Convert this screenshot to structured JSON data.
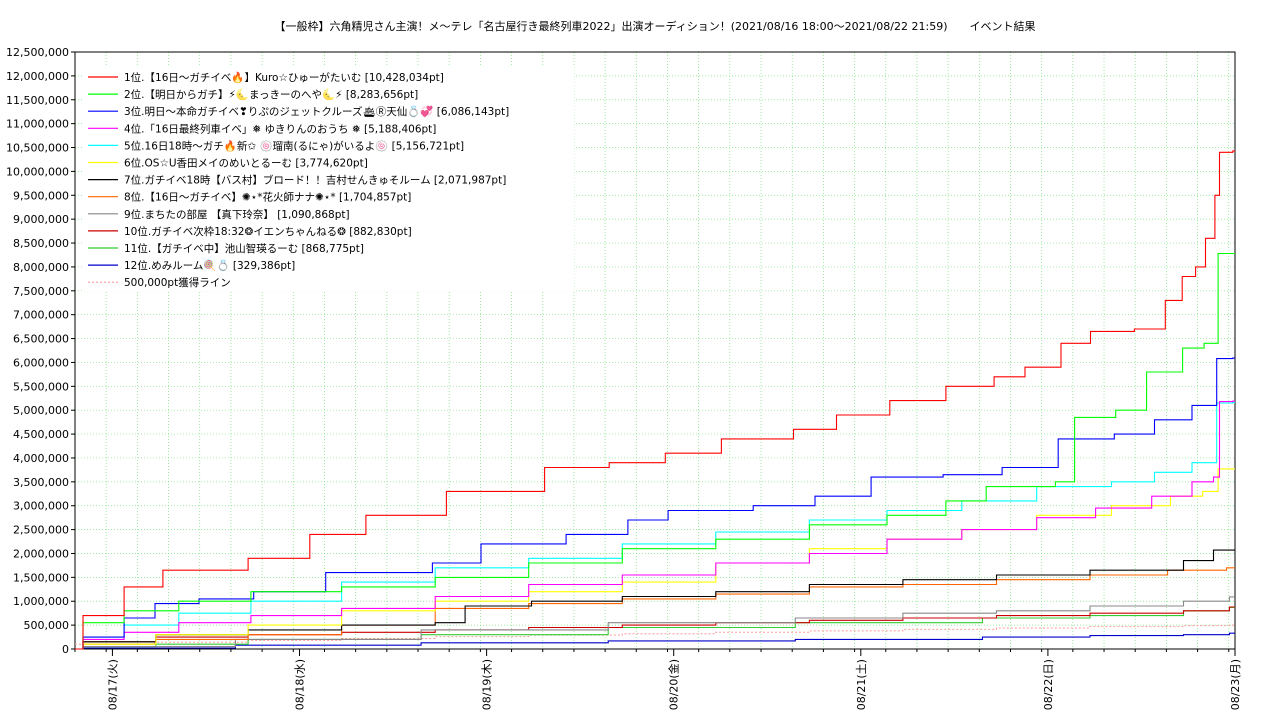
{
  "chart_data": {
    "type": "line",
    "title": "【一般枠】六角精児さん主演！メ〜テレ「名古屋行き最終列車2022」出演オーディション！(2021/08/16 18:00〜2021/08/22 21:59)　　イベント結果",
    "xlabel": "",
    "ylabel": "",
    "x_ticks": [
      "08/17(火)",
      "08/18(水)",
      "08/19(木)",
      "08/20(金)",
      "08/21(土)",
      "08/22(日)",
      "08/23(月)"
    ],
    "xlim": [
      0,
      6.2
    ],
    "ylim": [
      0,
      12500000
    ],
    "y_tick_step": 500000,
    "y_ticks": [
      "0",
      "500,000",
      "1,000,000",
      "1,500,000",
      "2,000,000",
      "2,500,000",
      "3,000,000",
      "3,500,000",
      "4,000,000",
      "4,500,000",
      "5,000,000",
      "5,500,000",
      "6,000,000",
      "6,500,000",
      "7,000,000",
      "7,500,000",
      "8,000,000",
      "8,500,000",
      "9,000,000",
      "9,500,000",
      "10,000,000",
      "10,500,000",
      "11,000,000",
      "11,500,000",
      "12,000,000",
      "12,500,000"
    ],
    "grid": true,
    "legend_position": "top-left",
    "x_unit": "days from 08/17(火) 00:00",
    "series": [
      {
        "name": "1位.【16日〜ガチイベ🔥】Kuro☆ひゅーがたいむ [10,428,034pt]",
        "color": "#ff0000",
        "points": [
          [
            0,
            0
          ],
          [
            0.05,
            0.7
          ],
          [
            0.3,
            1.3
          ],
          [
            0.5,
            1.65
          ],
          [
            1.0,
            1.9
          ],
          [
            1.3,
            2.4
          ],
          [
            1.6,
            2.8
          ],
          [
            1.9,
            2.8
          ],
          [
            2.0,
            3.3
          ],
          [
            2.6,
            3.8
          ],
          [
            2.9,
            3.9
          ],
          [
            3.2,
            4.1
          ],
          [
            3.5,
            4.4
          ],
          [
            3.9,
            4.6
          ],
          [
            4.1,
            4.9
          ],
          [
            4.4,
            5.2
          ],
          [
            4.7,
            5.5
          ],
          [
            4.95,
            5.7
          ],
          [
            5.1,
            5.9
          ],
          [
            5.3,
            6.4
          ],
          [
            5.45,
            6.65
          ],
          [
            5.7,
            6.7
          ],
          [
            5.85,
            7.3
          ],
          [
            5.93,
            7.8
          ],
          [
            6.0,
            8.0
          ],
          [
            6.05,
            8.6
          ],
          [
            6.1,
            9.5
          ],
          [
            6.12,
            10.4
          ],
          [
            6.2,
            10.43
          ]
        ]
      },
      {
        "name": "2位.【明日からガチ】⚡🌜まっきーのへや🌜⚡ [8,283,656pt]",
        "color": "#00ff00",
        "points": [
          [
            0,
            0
          ],
          [
            0.05,
            0.55
          ],
          [
            0.3,
            0.8
          ],
          [
            0.6,
            1.0
          ],
          [
            1.0,
            1.2
          ],
          [
            1.5,
            1.3
          ],
          [
            2.0,
            1.5
          ],
          [
            2.5,
            1.8
          ],
          [
            3.0,
            2.1
          ],
          [
            3.5,
            2.3
          ],
          [
            4.0,
            2.6
          ],
          [
            4.4,
            2.8
          ],
          [
            4.7,
            3.1
          ],
          [
            4.9,
            3.4
          ],
          [
            5.3,
            3.5
          ],
          [
            5.35,
            4.85
          ],
          [
            5.6,
            5.0
          ],
          [
            5.75,
            5.8
          ],
          [
            5.95,
            6.3
          ],
          [
            6.05,
            6.4
          ],
          [
            6.12,
            8.28
          ],
          [
            6.2,
            8.28
          ]
        ]
      },
      {
        "name": "3位.明日〜本命ガチイベ❣りぷのジェットクルーズ🛳Ⓡ天仙💍💞 [6,086,143pt]",
        "color": "#0000ff",
        "points": [
          [
            0,
            0
          ],
          [
            0.05,
            0.25
          ],
          [
            0.3,
            0.65
          ],
          [
            0.45,
            0.95
          ],
          [
            0.7,
            1.05
          ],
          [
            1.0,
            1.2
          ],
          [
            1.4,
            1.6
          ],
          [
            2.0,
            1.8
          ],
          [
            2.2,
            2.2
          ],
          [
            2.7,
            2.4
          ],
          [
            3.0,
            2.7
          ],
          [
            3.2,
            2.9
          ],
          [
            3.7,
            3.0
          ],
          [
            4.0,
            3.2
          ],
          [
            4.3,
            3.6
          ],
          [
            4.7,
            3.65
          ],
          [
            5.0,
            3.8
          ],
          [
            5.3,
            4.4
          ],
          [
            5.6,
            4.5
          ],
          [
            5.8,
            4.8
          ],
          [
            6.0,
            5.1
          ],
          [
            6.12,
            6.08
          ],
          [
            6.2,
            6.09
          ]
        ]
      },
      {
        "name": "4位.「16日最終列車イベ」❅ ゆきりんのおうち ❅ [5,188,406pt]",
        "color": "#ff00ff",
        "points": [
          [
            0,
            0
          ],
          [
            0.05,
            0.2
          ],
          [
            0.3,
            0.35
          ],
          [
            0.6,
            0.55
          ],
          [
            1.0,
            0.7
          ],
          [
            1.5,
            0.85
          ],
          [
            2.0,
            1.1
          ],
          [
            2.5,
            1.35
          ],
          [
            3.0,
            1.55
          ],
          [
            3.5,
            1.8
          ],
          [
            4.0,
            2.0
          ],
          [
            4.4,
            2.3
          ],
          [
            4.8,
            2.5
          ],
          [
            5.2,
            2.75
          ],
          [
            5.5,
            2.95
          ],
          [
            5.8,
            3.2
          ],
          [
            6.0,
            3.5
          ],
          [
            6.1,
            3.6
          ],
          [
            6.12,
            5.18
          ],
          [
            6.2,
            5.19
          ]
        ]
      },
      {
        "name": "5位.16日18時〜ガチ🔥新✩ 🍥瑠南(るにゃ)がいるよ🍥 [5,156,721pt]",
        "color": "#00ffff",
        "points": [
          [
            0,
            0
          ],
          [
            0.05,
            0.25
          ],
          [
            0.3,
            0.5
          ],
          [
            0.6,
            0.75
          ],
          [
            1.0,
            1.0
          ],
          [
            1.5,
            1.4
          ],
          [
            2.0,
            1.7
          ],
          [
            2.5,
            1.9
          ],
          [
            3.0,
            2.2
          ],
          [
            3.5,
            2.45
          ],
          [
            4.0,
            2.7
          ],
          [
            4.4,
            2.9
          ],
          [
            4.8,
            3.1
          ],
          [
            5.2,
            3.4
          ],
          [
            5.6,
            3.5
          ],
          [
            5.8,
            3.7
          ],
          [
            6.0,
            3.9
          ],
          [
            6.12,
            5.15
          ],
          [
            6.2,
            5.16
          ]
        ]
      },
      {
        "name": "6位.OS☆U香田メイのめいとるーむ [3,774,620pt]",
        "color": "#ffff00",
        "points": [
          [
            0,
            0
          ],
          [
            0.05,
            0.1
          ],
          [
            0.5,
            0.3
          ],
          [
            1.0,
            0.5
          ],
          [
            1.5,
            0.8
          ],
          [
            2.0,
            1.0
          ],
          [
            2.5,
            1.2
          ],
          [
            3.0,
            1.4
          ],
          [
            3.5,
            1.8
          ],
          [
            4.0,
            2.1
          ],
          [
            4.4,
            2.3
          ],
          [
            4.8,
            2.5
          ],
          [
            5.2,
            2.8
          ],
          [
            5.6,
            3.0
          ],
          [
            5.9,
            3.2
          ],
          [
            6.05,
            3.3
          ],
          [
            6.12,
            3.77
          ],
          [
            6.2,
            3.77
          ]
        ]
      },
      {
        "name": "7位.ガチイベ18時【バス村】ブロード！！吉村せんきゅそルーム [2,071,987pt]",
        "color": "#000000",
        "points": [
          [
            0,
            0
          ],
          [
            0.05,
            0.15
          ],
          [
            0.5,
            0.3
          ],
          [
            1.0,
            0.4
          ],
          [
            1.5,
            0.5
          ],
          [
            2.0,
            0.55
          ],
          [
            2.1,
            0.9
          ],
          [
            2.5,
            1.0
          ],
          [
            3.0,
            1.1
          ],
          [
            3.5,
            1.2
          ],
          [
            4.0,
            1.35
          ],
          [
            4.5,
            1.45
          ],
          [
            5.0,
            1.55
          ],
          [
            5.5,
            1.65
          ],
          [
            6.0,
            1.85
          ],
          [
            6.1,
            2.07
          ],
          [
            6.2,
            2.07
          ]
        ]
      },
      {
        "name": "8位.【16日〜ガチイベ】✺⋆*花火師ナナ✺⋆* [1,704,857pt]",
        "color": "#ff6600",
        "points": [
          [
            0,
            0
          ],
          [
            0.05,
            0.1
          ],
          [
            0.5,
            0.2
          ],
          [
            1.0,
            0.3
          ],
          [
            1.5,
            0.5
          ],
          [
            2.0,
            0.85
          ],
          [
            2.5,
            0.95
          ],
          [
            3.0,
            1.05
          ],
          [
            3.5,
            1.15
          ],
          [
            4.0,
            1.3
          ],
          [
            4.5,
            1.35
          ],
          [
            5.0,
            1.45
          ],
          [
            5.5,
            1.55
          ],
          [
            5.9,
            1.65
          ],
          [
            6.2,
            1.7
          ]
        ]
      },
      {
        "name": "9位.まちたの部屋 【真下玲奈】 [1,090,868pt]",
        "color": "#888888",
        "points": [
          [
            0,
            0
          ],
          [
            0.05,
            0.05
          ],
          [
            1.0,
            0.2
          ],
          [
            2.0,
            0.4
          ],
          [
            3.0,
            0.55
          ],
          [
            4.0,
            0.65
          ],
          [
            4.5,
            0.75
          ],
          [
            5.0,
            0.8
          ],
          [
            5.5,
            0.9
          ],
          [
            6.0,
            1.0
          ],
          [
            6.2,
            1.09
          ]
        ]
      },
      {
        "name": "10位.ガチイベ次枠18:32❂イエンちゃんねる❂ [882,830pt]",
        "color": "#cc0000",
        "points": [
          [
            0,
            0
          ],
          [
            0.05,
            0.15
          ],
          [
            0.5,
            0.25
          ],
          [
            1.0,
            0.3
          ],
          [
            1.5,
            0.35
          ],
          [
            2.0,
            0.4
          ],
          [
            2.5,
            0.45
          ],
          [
            3.0,
            0.5
          ],
          [
            3.5,
            0.55
          ],
          [
            4.0,
            0.6
          ],
          [
            4.5,
            0.65
          ],
          [
            5.0,
            0.7
          ],
          [
            5.5,
            0.75
          ],
          [
            6.0,
            0.8
          ],
          [
            6.2,
            0.88
          ]
        ]
      },
      {
        "name": "11位.【ガチイベ中】池山智瑛るーむ [868,775pt]",
        "color": "#33cc33",
        "points": [
          [
            0,
            0
          ],
          [
            0.05,
            0.05
          ],
          [
            0.5,
            0.1
          ],
          [
            1.0,
            0.2
          ],
          [
            2.0,
            0.3
          ],
          [
            3.0,
            0.45
          ],
          [
            4.0,
            0.55
          ],
          [
            5.0,
            0.65
          ],
          [
            5.5,
            0.7
          ],
          [
            6.0,
            0.8
          ],
          [
            6.2,
            0.87
          ]
        ]
      },
      {
        "name": "12位.めみルーム🍭💍 [329,386pt]",
        "color": "#0000cc",
        "points": [
          [
            0,
            0
          ],
          [
            0.05,
            0.02
          ],
          [
            1.0,
            0.08
          ],
          [
            2.0,
            0.13
          ],
          [
            3.0,
            0.17
          ],
          [
            4.0,
            0.2
          ],
          [
            5.0,
            0.25
          ],
          [
            5.5,
            0.28
          ],
          [
            6.0,
            0.3
          ],
          [
            6.2,
            0.33
          ]
        ]
      }
    ],
    "reference_line": {
      "name": "500,000pt獲得ライン",
      "color": "#ff9999",
      "points": [
        [
          0,
          0.1
        ],
        [
          0.5,
          0.14
        ],
        [
          1.0,
          0.18
        ],
        [
          1.5,
          0.22
        ],
        [
          2.0,
          0.26
        ],
        [
          2.5,
          0.29
        ],
        [
          3.0,
          0.32
        ],
        [
          3.5,
          0.35
        ],
        [
          4.0,
          0.38
        ],
        [
          4.5,
          0.41
        ],
        [
          5.0,
          0.44
        ],
        [
          5.5,
          0.47
        ],
        [
          6.0,
          0.49
        ],
        [
          6.2,
          0.5
        ]
      ]
    },
    "value_scale": 1000000
  }
}
